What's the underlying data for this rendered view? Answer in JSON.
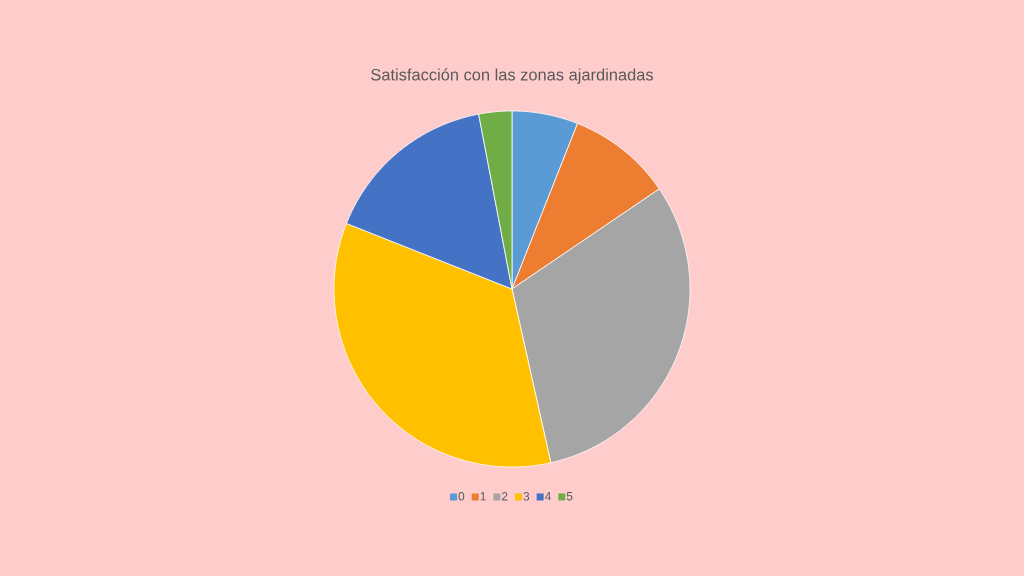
{
  "chart_data": {
    "type": "pie",
    "title": "Satisfacción con las zonas ajardinadas",
    "categories": [
      "0",
      "1",
      "2",
      "3",
      "4",
      "5"
    ],
    "values": [
      6,
      9.5,
      31,
      34.5,
      16,
      3
    ],
    "colors": [
      "#5b9bd5",
      "#ed7d31",
      "#a5a5a5",
      "#ffc000",
      "#4472c4",
      "#70ad47"
    ],
    "legend": "bottom"
  }
}
